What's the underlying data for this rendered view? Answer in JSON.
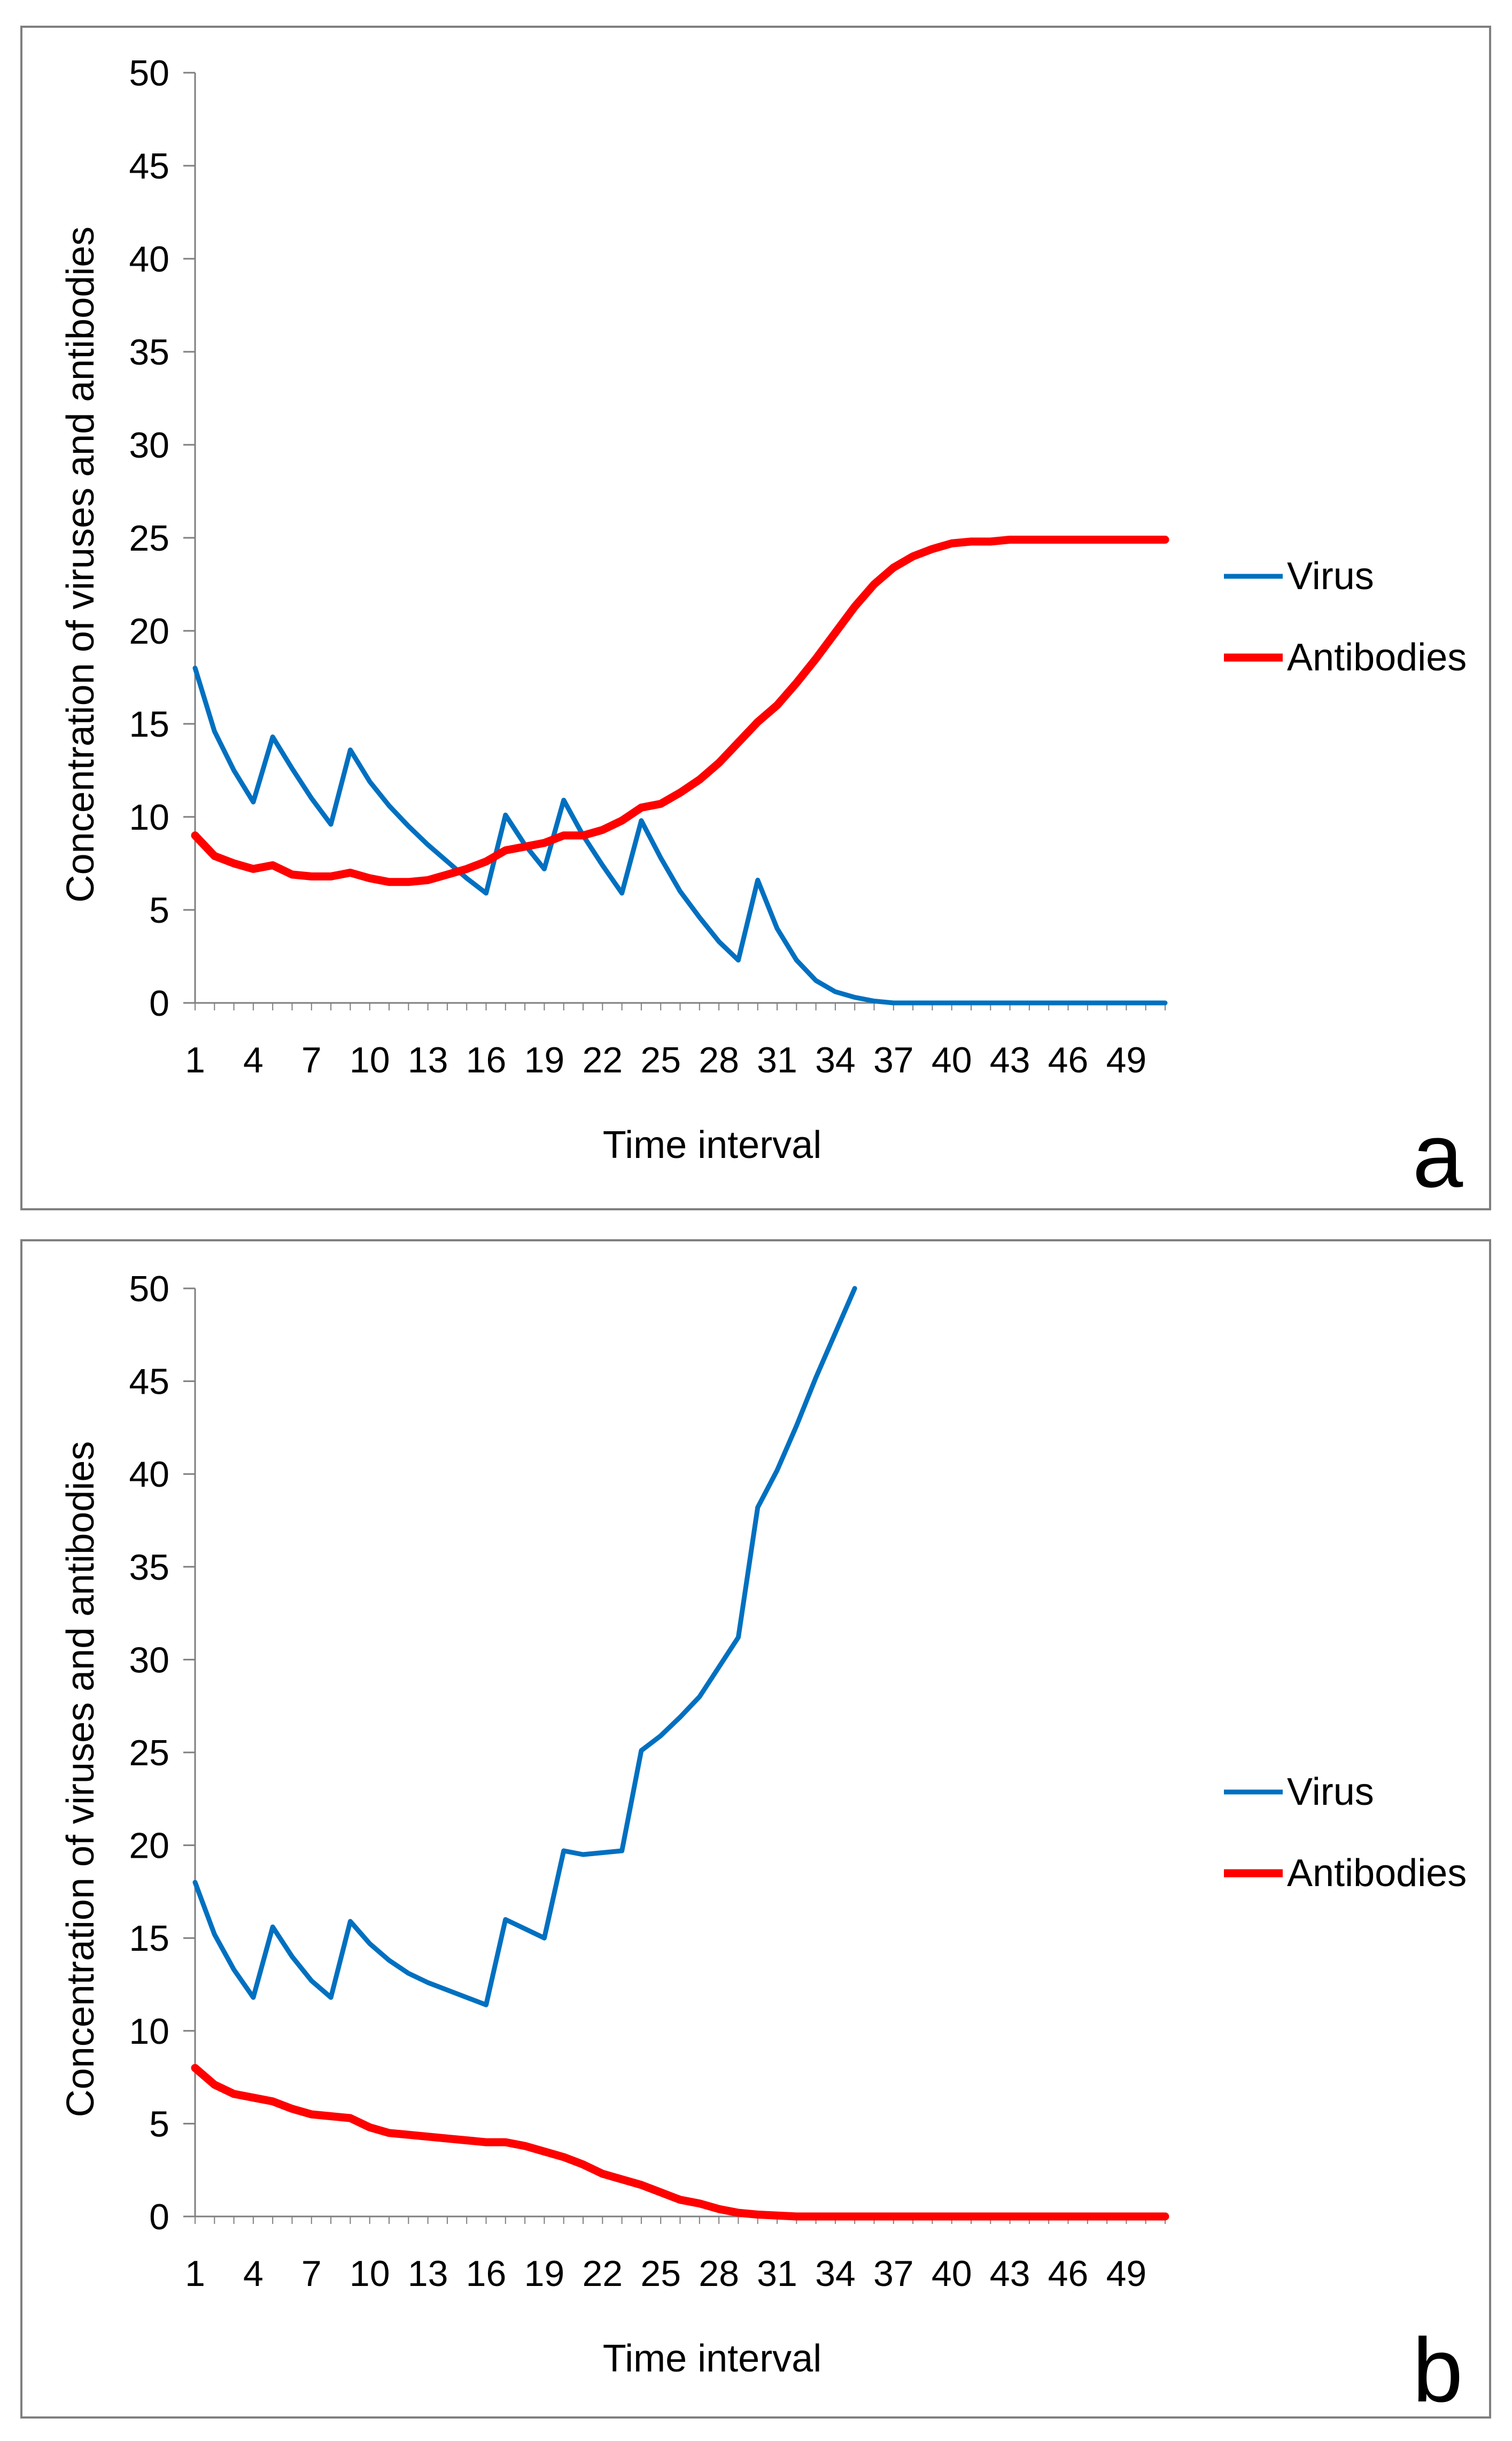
{
  "chart_data": [
    {
      "type": "line",
      "panel_label": "a",
      "xlabel": "Time interval",
      "ylabel": "Concentration of  viruses and antibodies",
      "ylim": [
        0,
        50
      ],
      "yticks": [
        0,
        5,
        10,
        15,
        20,
        25,
        30,
        35,
        40,
        45,
        50
      ],
      "xticks": [
        1,
        4,
        7,
        10,
        13,
        16,
        19,
        22,
        25,
        28,
        31,
        34,
        37,
        40,
        43,
        46,
        49
      ],
      "xrange": [
        1,
        51
      ],
      "legend_position": "right",
      "series": [
        {
          "name": "Virus",
          "color": "#0070C0",
          "x": [
            1,
            2,
            3,
            4,
            5,
            6,
            7,
            8,
            9,
            10,
            11,
            12,
            13,
            14,
            15,
            16,
            17,
            18,
            19,
            20,
            21,
            22,
            23,
            24,
            25,
            26,
            27,
            28,
            29,
            30,
            31,
            32,
            33,
            34,
            35,
            36,
            37,
            38,
            39,
            40,
            41,
            42,
            43,
            44,
            45,
            46,
            47,
            48,
            49,
            50,
            51
          ],
          "values": [
            18,
            14.6,
            12.5,
            10.8,
            14.3,
            12.6,
            11,
            9.6,
            13.6,
            11.9,
            10.6,
            9.5,
            8.5,
            7.6,
            6.7,
            5.9,
            10.1,
            8.5,
            7.2,
            10.9,
            9,
            7.4,
            5.9,
            9.8,
            7.8,
            6,
            4.6,
            3.3,
            2.3,
            6.6,
            4,
            2.3,
            1.2,
            0.6,
            0.3,
            0.1,
            0,
            0,
            0,
            0,
            0,
            0,
            0,
            0,
            0,
            0,
            0,
            0,
            0,
            0,
            0
          ]
        },
        {
          "name": "Antibodies",
          "color": "#FF0000",
          "x": [
            1,
            2,
            3,
            4,
            5,
            6,
            7,
            8,
            9,
            10,
            11,
            12,
            13,
            14,
            15,
            16,
            17,
            18,
            19,
            20,
            21,
            22,
            23,
            24,
            25,
            26,
            27,
            28,
            29,
            30,
            31,
            32,
            33,
            34,
            35,
            36,
            37,
            38,
            39,
            40,
            41,
            42,
            43,
            44,
            45,
            46,
            47,
            48,
            49,
            50,
            51
          ],
          "values": [
            9,
            7.9,
            7.5,
            7.2,
            7.4,
            6.9,
            6.8,
            6.8,
            7,
            6.7,
            6.5,
            6.5,
            6.6,
            6.9,
            7.2,
            7.6,
            8.2,
            8.4,
            8.6,
            9,
            9,
            9.3,
            9.8,
            10.5,
            10.7,
            11.3,
            12,
            12.9,
            14,
            15.1,
            16,
            17.2,
            18.5,
            19.9,
            21.3,
            22.5,
            23.4,
            24,
            24.4,
            24.7,
            24.8,
            24.8,
            24.9,
            24.9,
            24.9,
            24.9,
            24.9,
            24.9,
            24.9,
            24.9,
            24.9
          ]
        }
      ]
    },
    {
      "type": "line",
      "panel_label": "b",
      "xlabel": "Time interval",
      "ylabel": "Concentration of  viruses and antibodies",
      "ylim": [
        0,
        50
      ],
      "yticks": [
        0,
        5,
        10,
        15,
        20,
        25,
        30,
        35,
        40,
        45,
        50
      ],
      "xticks": [
        1,
        4,
        7,
        10,
        13,
        16,
        19,
        22,
        25,
        28,
        31,
        34,
        37,
        40,
        43,
        46,
        49
      ],
      "xrange": [
        1,
        51
      ],
      "legend_position": "right",
      "series": [
        {
          "name": "Virus",
          "color": "#0070C0",
          "x": [
            1,
            2,
            3,
            4,
            5,
            6,
            7,
            8,
            9,
            10,
            11,
            12,
            13,
            14,
            15,
            16,
            17,
            18,
            19,
            20,
            21,
            22,
            23,
            24,
            25,
            26,
            27,
            28,
            29,
            30,
            31,
            32,
            33,
            34,
            35
          ],
          "values": [
            18,
            15.2,
            13.3,
            11.8,
            15.6,
            14,
            12.7,
            11.8,
            15.9,
            14.7,
            13.8,
            13.1,
            12.6,
            12.2,
            11.8,
            11.4,
            16,
            15.5,
            15,
            19.7,
            19.5,
            19.6,
            19.7,
            25.1,
            25.9,
            26.9,
            28,
            29.6,
            31.2,
            38.2,
            40.2,
            42.6,
            45.2,
            47.6,
            50
          ]
        },
        {
          "name": "Antibodies",
          "color": "#FF0000",
          "x": [
            1,
            2,
            3,
            4,
            5,
            6,
            7,
            8,
            9,
            10,
            11,
            12,
            13,
            14,
            15,
            16,
            17,
            18,
            19,
            20,
            21,
            22,
            23,
            24,
            25,
            26,
            27,
            28,
            29,
            30,
            31,
            32,
            33,
            34,
            35,
            36,
            37,
            38,
            39,
            40,
            41,
            42,
            43,
            44,
            45,
            46,
            47,
            48,
            49,
            50,
            51
          ],
          "values": [
            8,
            7.1,
            6.6,
            6.4,
            6.2,
            5.8,
            5.5,
            5.4,
            5.3,
            4.8,
            4.5,
            4.4,
            4.3,
            4.2,
            4.1,
            4,
            4,
            3.8,
            3.5,
            3.2,
            2.8,
            2.3,
            2,
            1.7,
            1.3,
            0.9,
            0.7,
            0.4,
            0.2,
            0.1,
            0.05,
            0,
            0,
            0,
            0,
            0,
            0,
            0,
            0,
            0,
            0,
            0,
            0,
            0,
            0,
            0,
            0,
            0,
            0,
            0,
            0
          ]
        }
      ]
    }
  ]
}
